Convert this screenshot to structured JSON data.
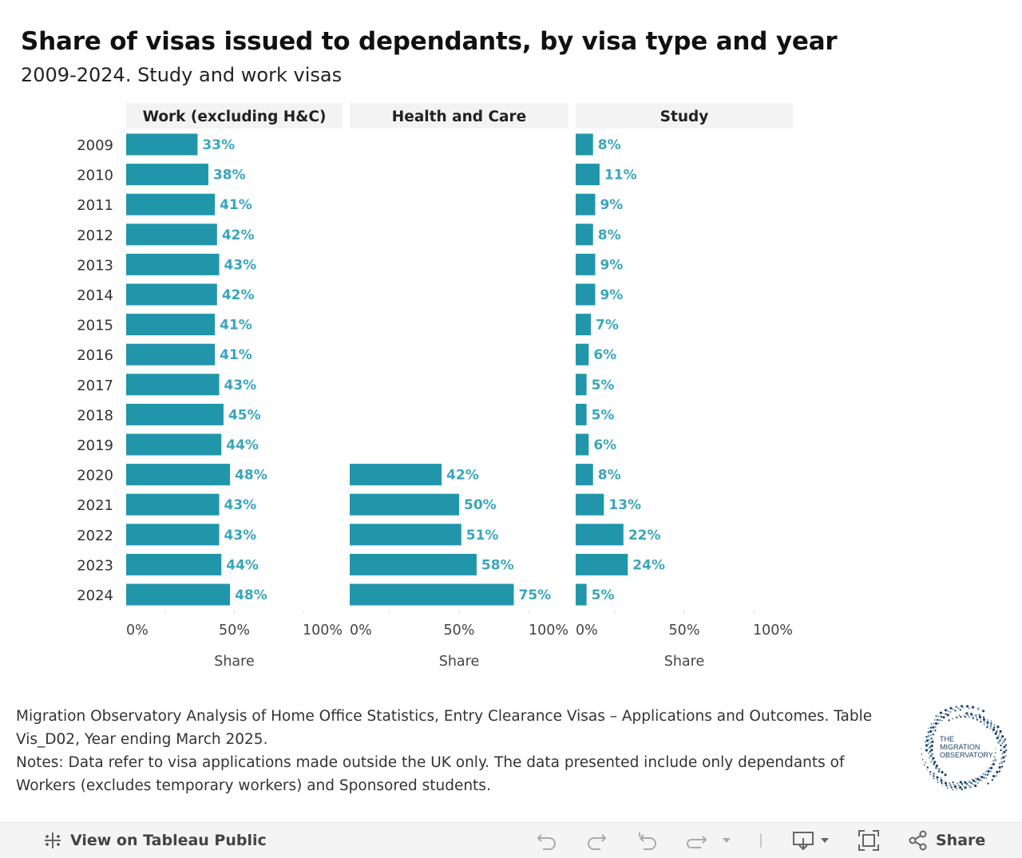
{
  "title": "Share of visas issued to dependants, by visa type and year",
  "subtitle": "2009-2024. Study and work visas",
  "chart_data": {
    "type": "bar",
    "orientation": "horizontal",
    "categories": [
      "2009",
      "2010",
      "2011",
      "2012",
      "2013",
      "2014",
      "2015",
      "2016",
      "2017",
      "2018",
      "2019",
      "2020",
      "2021",
      "2022",
      "2023",
      "2024"
    ],
    "panels": [
      {
        "name": "Work (excluding H&C)",
        "values": [
          33,
          38,
          41,
          42,
          43,
          42,
          41,
          41,
          43,
          45,
          44,
          48,
          43,
          43,
          44,
          48
        ]
      },
      {
        "name": "Health and Care",
        "values": [
          null,
          null,
          null,
          null,
          null,
          null,
          null,
          null,
          null,
          null,
          null,
          42,
          50,
          51,
          58,
          75
        ]
      },
      {
        "name": "Study",
        "values": [
          8,
          11,
          9,
          8,
          9,
          9,
          7,
          6,
          5,
          5,
          6,
          8,
          13,
          22,
          24,
          5
        ]
      }
    ],
    "xlabel": "Share",
    "xlim": [
      0,
      100
    ],
    "xticks": [
      "0%",
      "50%",
      "100%"
    ],
    "bar_color": "#2196aa",
    "label_color": "#3aa5bb"
  },
  "source": {
    "line1": "Migration Observatory Analysis of Home Office Statistics, Entry Clearance Visas – Applications and Outcomes. Table Vis_D02, Year ending March 2025.",
    "line2": "Notes: Data refer to visa applications made outside the UK only. The data presented include only dependants of Workers (excludes temporary workers) and Sponsored students."
  },
  "logo": {
    "line1": "THE",
    "line2": "MIGRATION",
    "line3": "OBSERVATORY"
  },
  "toolbar": {
    "view_label": "View on Tableau Public",
    "share_label": "Share"
  }
}
